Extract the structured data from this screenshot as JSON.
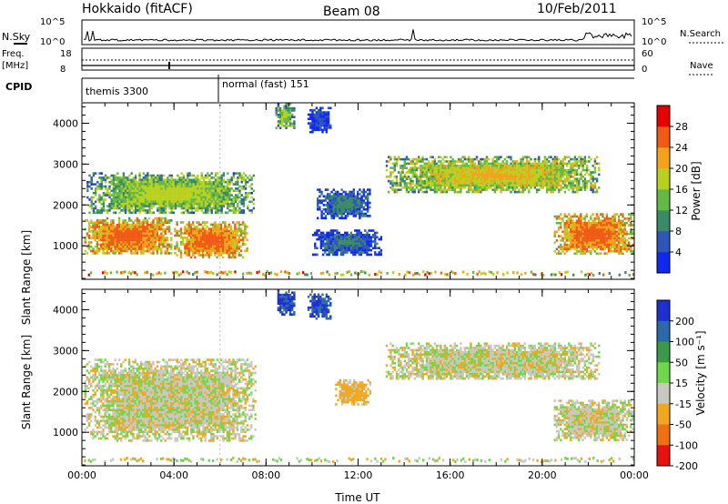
{
  "header": {
    "station": "Hokkaido (fitACF)",
    "beam": "Beam 08",
    "date": "10/Feb/2011"
  },
  "strip": {
    "nsky_label": "N.Sky",
    "nsearch_label": "N.Search",
    "freq_label_1": "Freq.",
    "freq_label_2": "[MHz]",
    "nave_label": "Nave",
    "cpid_label": "CPID",
    "nsky_ticks": [
      "10^5",
      "10^0"
    ],
    "freq_ticks": [
      "18",
      "8"
    ],
    "nave_ticks": [
      "60",
      "0"
    ]
  },
  "cpid": {
    "segments": [
      {
        "start_hour": 0,
        "end_hour": 6,
        "label": "themis 3300"
      },
      {
        "start_hour": 6,
        "end_hour": 24,
        "label": "normal (fast) 151"
      }
    ]
  },
  "chart_data": [
    {
      "type": "heatmap",
      "quantity": "power",
      "ylabel": "Slant Range [km]",
      "xlabel": "Time UT",
      "x_ticks": [
        "00:00",
        "04:00",
        "08:00",
        "12:00",
        "16:00",
        "20:00",
        "00:00"
      ],
      "y_ticks": [
        "1000",
        "2000",
        "3000",
        "4000"
      ],
      "xlim_hours": [
        0,
        24
      ],
      "ylim": [
        180,
        4500
      ],
      "colorbar": {
        "label": "Power [dB]",
        "ticks": [
          "4",
          "8",
          "12",
          "16",
          "20",
          "24",
          "28"
        ],
        "colors": [
          "#1028f0",
          "#2e55b8",
          "#3a8a66",
          "#63b847",
          "#b9d01f",
          "#f2a21b",
          "#ef5a14",
          "#e80000"
        ]
      },
      "features": [
        {
          "start_hour": 0.1,
          "end_hour": 3.9,
          "range_km": [
            800,
            1700
          ],
          "level": 28
        },
        {
          "start_hour": 4.0,
          "end_hour": 7.2,
          "range_km": [
            700,
            1600
          ],
          "level": 28
        },
        {
          "start_hour": 0.2,
          "end_hour": 7.5,
          "range_km": [
            1800,
            2800
          ],
          "level": 20
        },
        {
          "start_hour": 8.4,
          "end_hour": 9.2,
          "range_km": [
            3900,
            4500
          ],
          "level": 18
        },
        {
          "start_hour": 9.8,
          "end_hour": 10.8,
          "range_km": [
            3800,
            4400
          ],
          "level": 8
        },
        {
          "start_hour": 10.2,
          "end_hour": 12.5,
          "range_km": [
            1700,
            2400
          ],
          "level": 12
        },
        {
          "start_hour": 10.0,
          "end_hour": 13.0,
          "range_km": [
            800,
            1400
          ],
          "level": 10
        },
        {
          "start_hour": 13.2,
          "end_hour": 22.5,
          "range_km": [
            2300,
            3200
          ],
          "level": 22
        },
        {
          "start_hour": 20.5,
          "end_hour": 23.9,
          "range_km": [
            800,
            1800
          ],
          "level": 28
        }
      ]
    },
    {
      "type": "heatmap",
      "quantity": "velocity",
      "ylabel": "Slant Range [km]",
      "xlabel": "Time UT",
      "x_ticks": [
        "00:00",
        "04:00",
        "08:00",
        "12:00",
        "16:00",
        "20:00",
        "00:00"
      ],
      "y_ticks": [
        "1000",
        "2000",
        "3000",
        "4000"
      ],
      "xlim_hours": [
        0,
        24
      ],
      "ylim": [
        180,
        4500
      ],
      "colorbar": {
        "label": "Velocity [m s⁻¹]",
        "ticks": [
          "200",
          "100",
          "50",
          "15",
          "-15",
          "-50",
          "-100",
          "-200"
        ],
        "colors": [
          "#1f2fd0",
          "#2b6aa8",
          "#3a9a48",
          "#6ed84a",
          "#c8c8c0",
          "#f0a820",
          "#f07010",
          "#e81010"
        ]
      },
      "features": [
        {
          "start_hour": 0.1,
          "end_hour": 7.5,
          "range_km": [
            800,
            2800
          ],
          "level": 0
        },
        {
          "start_hour": 8.4,
          "end_hour": 9.2,
          "range_km": [
            3900,
            4500
          ],
          "level": 200
        },
        {
          "start_hour": 9.8,
          "end_hour": 10.8,
          "range_km": [
            3800,
            4400
          ],
          "level": 200
        },
        {
          "start_hour": 11.0,
          "end_hour": 12.5,
          "range_km": [
            1700,
            2300
          ],
          "level": -30
        },
        {
          "start_hour": 13.2,
          "end_hour": 22.5,
          "range_km": [
            2300,
            3200
          ],
          "level": 0
        },
        {
          "start_hour": 20.5,
          "end_hour": 23.9,
          "range_km": [
            800,
            1800
          ],
          "level": 0
        }
      ]
    }
  ]
}
